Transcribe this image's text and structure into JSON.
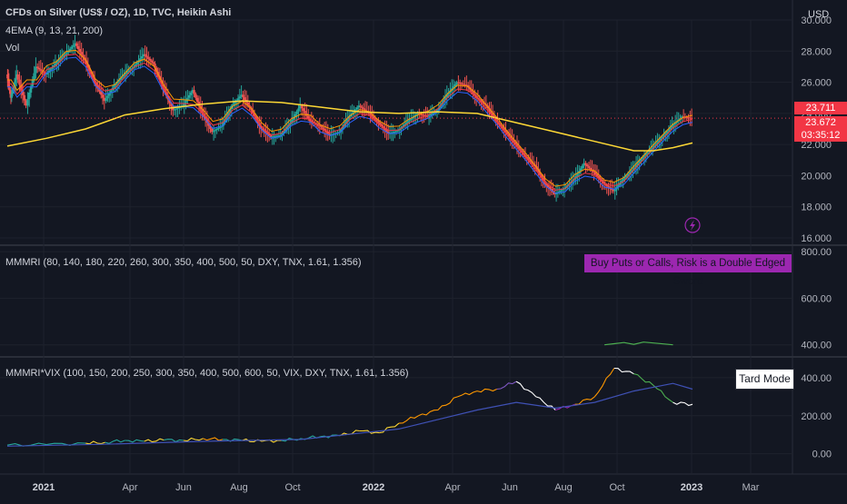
{
  "header": {
    "symbol_title": "CFDs on Silver (US$ / OZ), 1D, TVC, Heikin Ashi",
    "indicator_ema": "4EMA (9, 13, 21, 200)",
    "indicator_vol": "Vol",
    "currency": "USD"
  },
  "price_boxes": [
    {
      "value": "23.711",
      "color": "#f23645"
    },
    {
      "value": "23.672",
      "color": "#f23645"
    },
    {
      "value": "03:35:12",
      "color": "#f23645"
    }
  ],
  "pane2": {
    "title": "MMMRI (80, 140, 180, 220, 260, 300, 350, 400, 500, 50, DXY, TNX, 1.61, 1.356)",
    "badge": "Buy Puts or Calls, Risk is a Double Edged Sword"
  },
  "pane3": {
    "title": "MMMRI*VIX (100, 150, 200, 250, 300, 350, 400, 500, 600, 50, VIX, DXY, TNX, 1.61, 1.356)",
    "badge": "Tard Mode"
  },
  "colors": {
    "background": "#131722",
    "up": "#26a69a",
    "down": "#ef5350",
    "ema200": "#fdd835",
    "ema9": "#ff9800",
    "ema13": "#f23645",
    "ema21": "#2962ff",
    "mmmri_green": "#4caf50",
    "mmmri_purple": "#9c27b0",
    "vix_line": "#3f51b5"
  },
  "chart_data": [
    {
      "type": "line",
      "pane": "price",
      "title": "CFDs on Silver (US$ / OZ), 1D, TVC, Heikin Ashi",
      "ylabel": "USD",
      "x": [
        "2021",
        "Apr",
        "Jun",
        "Aug",
        "Oct",
        "2022",
        "Apr",
        "Jun",
        "Aug",
        "Oct",
        "2023",
        "Mar"
      ],
      "y_ticks": [
        "30.000",
        "28.000",
        "26.000",
        "24.000",
        "22.000",
        "20.000",
        "18.000",
        "16.000"
      ],
      "ylim": [
        16,
        30
      ],
      "series": [
        {
          "name": "price",
          "points": [
            [
              0,
              26.5
            ],
            [
              0.2,
              25.0
            ],
            [
              0.5,
              26.5
            ],
            [
              1.0,
              24.5
            ],
            [
              1.5,
              27.0
            ],
            [
              2.0,
              26.5
            ],
            [
              2.5,
              27.2
            ],
            [
              3.0,
              27.8
            ],
            [
              3.5,
              28.5
            ],
            [
              4.0,
              27.4
            ],
            [
              4.5,
              26.0
            ],
            [
              5.0,
              24.8
            ],
            [
              5.5,
              25.8
            ],
            [
              6.0,
              26.5
            ],
            [
              6.5,
              27.0
            ],
            [
              7.0,
              27.8
            ],
            [
              7.5,
              27.2
            ],
            [
              8.0,
              25.6
            ],
            [
              8.5,
              24.2
            ],
            [
              9.0,
              24.5
            ],
            [
              9.5,
              25.5
            ],
            [
              10.0,
              24.0
            ],
            [
              10.5,
              22.8
            ],
            [
              11.0,
              23.2
            ],
            [
              11.5,
              24.5
            ],
            [
              12.0,
              25.2
            ],
            [
              12.5,
              24.2
            ],
            [
              13.0,
              23.0
            ],
            [
              13.5,
              22.5
            ],
            [
              14.0,
              22.6
            ],
            [
              14.5,
              23.4
            ],
            [
              15.0,
              24.5
            ],
            [
              15.5,
              23.5
            ],
            [
              16.0,
              23.2
            ],
            [
              16.5,
              22.6
            ],
            [
              17.0,
              22.8
            ],
            [
              17.5,
              23.8
            ],
            [
              18.0,
              24.5
            ],
            [
              18.5,
              24.0
            ],
            [
              19.0,
              23.4
            ],
            [
              19.5,
              22.7
            ],
            [
              20.0,
              22.9
            ],
            [
              20.5,
              23.5
            ],
            [
              21.0,
              24.0
            ],
            [
              21.5,
              23.8
            ],
            [
              22.0,
              24.2
            ],
            [
              22.5,
              25.2
            ],
            [
              23.0,
              26.0
            ],
            [
              23.5,
              25.8
            ],
            [
              24.0,
              25.0
            ],
            [
              24.5,
              24.5
            ],
            [
              25.0,
              23.5
            ],
            [
              25.5,
              22.8
            ],
            [
              26.0,
              22.0
            ],
            [
              26.5,
              21.2
            ],
            [
              27.0,
              20.6
            ],
            [
              27.5,
              19.5
            ],
            [
              28.0,
              18.8
            ],
            [
              28.5,
              19.2
            ],
            [
              29.0,
              19.8
            ],
            [
              29.5,
              20.8
            ],
            [
              30.0,
              20.2
            ],
            [
              30.5,
              19.5
            ],
            [
              31.0,
              19.0
            ],
            [
              31.5,
              19.8
            ],
            [
              32.0,
              20.4
            ],
            [
              32.5,
              21.2
            ],
            [
              33.0,
              21.8
            ],
            [
              33.5,
              22.5
            ],
            [
              34.0,
              23.2
            ],
            [
              34.5,
              23.8
            ],
            [
              35.0,
              23.7
            ]
          ]
        },
        {
          "name": "ema200",
          "points": [
            [
              0,
              21.9
            ],
            [
              2,
              22.4
            ],
            [
              4,
              23.0
            ],
            [
              6,
              23.9
            ],
            [
              8,
              24.3
            ],
            [
              10,
              24.6
            ],
            [
              12,
              24.8
            ],
            [
              14,
              24.7
            ],
            [
              16,
              24.4
            ],
            [
              18,
              24.1
            ],
            [
              20,
              24.0
            ],
            [
              22,
              24.1
            ],
            [
              24,
              24.0
            ],
            [
              26,
              23.4
            ],
            [
              28,
              22.8
            ],
            [
              30,
              22.2
            ],
            [
              32,
              21.6
            ],
            [
              33,
              21.6
            ],
            [
              34,
              21.8
            ],
            [
              35,
              22.1
            ]
          ]
        }
      ]
    },
    {
      "type": "line",
      "pane": "MMMRI",
      "title": "MMMRI (80, 140, 180, 220, 260, 300, 350, 400, 500, 50, DXY, TNX, 1.61, 1.356)",
      "y_ticks": [
        "800.00",
        "600.00",
        "400.00"
      ],
      "ylim": [
        360,
        820
      ],
      "series": [
        {
          "name": "MMMRI",
          "points": [
            [
              30.5,
              400
            ],
            [
              31.0,
              405
            ],
            [
              31.5,
              410
            ],
            [
              32.0,
              402
            ],
            [
              32.5,
              412
            ],
            [
              33.0,
              408
            ],
            [
              33.5,
              404
            ],
            [
              34.0,
              400
            ]
          ]
        }
      ]
    },
    {
      "type": "line",
      "pane": "MMMRI*VIX",
      "title": "MMMRI*VIX (100, 150, 200, 250, 300, 350, 400, 500, 600, 50, VIX, DXY, TNX, 1.61, 1.356)",
      "y_ticks": [
        "400.00",
        "200.00",
        "0.00"
      ],
      "ylim": [
        -40,
        500
      ],
      "series": [
        {
          "name": "MMMRI*VIX",
          "points": [
            [
              0,
              45
            ],
            [
              2,
              48
            ],
            [
              4,
              55
            ],
            [
              5,
              60
            ],
            [
              6,
              70
            ],
            [
              7,
              65
            ],
            [
              8,
              72
            ],
            [
              9,
              70
            ],
            [
              10,
              80
            ],
            [
              11,
              75
            ],
            [
              12,
              70
            ],
            [
              13,
              65
            ],
            [
              14,
              70
            ],
            [
              15,
              80
            ],
            [
              16,
              90
            ],
            [
              17,
              95
            ],
            [
              18,
              120
            ],
            [
              19,
              110
            ],
            [
              20,
              160
            ],
            [
              21,
              200
            ],
            [
              22,
              230
            ],
            [
              23,
              300
            ],
            [
              24,
              330
            ],
            [
              25,
              340
            ],
            [
              26,
              380
            ],
            [
              27,
              300
            ],
            [
              28,
              230
            ],
            [
              29,
              260
            ],
            [
              30,
              300
            ],
            [
              31,
              450
            ],
            [
              32,
              420
            ],
            [
              33,
              360
            ],
            [
              34,
              270
            ],
            [
              35,
              260
            ]
          ]
        },
        {
          "name": "MA",
          "points": [
            [
              0,
              40
            ],
            [
              5,
              50
            ],
            [
              10,
              65
            ],
            [
              15,
              75
            ],
            [
              20,
              130
            ],
            [
              24,
              230
            ],
            [
              26,
              270
            ],
            [
              28,
              240
            ],
            [
              30,
              270
            ],
            [
              32,
              330
            ],
            [
              34,
              370
            ],
            [
              35,
              340
            ]
          ]
        }
      ]
    }
  ]
}
